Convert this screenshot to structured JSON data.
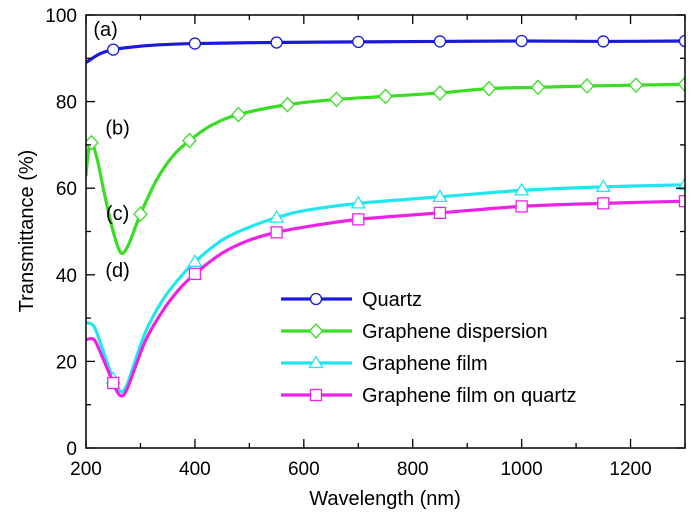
{
  "chart_data": {
    "type": "line",
    "xlabel": "Wavelength (nm)",
    "ylabel": "Transmittance (%)",
    "xlim": [
      200,
      1300
    ],
    "ylim": [
      0,
      100
    ],
    "xticks": [
      200,
      400,
      600,
      800,
      1000,
      1200
    ],
    "yticks": [
      0,
      20,
      40,
      60,
      80,
      100
    ],
    "grid": false,
    "legend_position": "lower-right",
    "series": [
      {
        "name": "Quartz",
        "curve_label": "(a)",
        "color": "#1a1adc",
        "marker": "circle",
        "points": [
          [
            200,
            89
          ],
          [
            225,
            91
          ],
          [
            250,
            92
          ],
          [
            300,
            92.8
          ],
          [
            350,
            93.2
          ],
          [
            400,
            93.4
          ],
          [
            500,
            93.6
          ],
          [
            600,
            93.7
          ],
          [
            700,
            93.8
          ],
          [
            850,
            93.9
          ],
          [
            1000,
            94
          ],
          [
            1150,
            93.9
          ],
          [
            1300,
            94
          ]
        ],
        "marker_x": [
          250,
          400,
          550,
          700,
          850,
          1000,
          1150,
          1300
        ]
      },
      {
        "name": "Graphene dispersion",
        "curve_label": "(b)",
        "color": "#38dd24",
        "marker": "diamond",
        "points": [
          [
            200,
            63
          ],
          [
            205,
            69
          ],
          [
            210,
            70.5
          ],
          [
            220,
            67
          ],
          [
            235,
            58
          ],
          [
            250,
            50
          ],
          [
            260,
            46
          ],
          [
            268,
            45
          ],
          [
            280,
            47.5
          ],
          [
            300,
            54
          ],
          [
            330,
            62
          ],
          [
            360,
            67.5
          ],
          [
            390,
            71
          ],
          [
            430,
            74.5
          ],
          [
            480,
            77
          ],
          [
            570,
            79.3
          ],
          [
            660,
            80.5
          ],
          [
            750,
            81.2
          ],
          [
            850,
            82
          ],
          [
            940,
            83
          ],
          [
            1030,
            83.3
          ],
          [
            1120,
            83.6
          ],
          [
            1210,
            83.8
          ],
          [
            1300,
            84
          ]
        ],
        "marker_x": [
          210,
          300,
          390,
          480,
          570,
          660,
          750,
          850,
          940,
          1030,
          1120,
          1210,
          1300
        ]
      },
      {
        "name": "Graphene film",
        "curve_label": "(c)",
        "color": "#22e6ee",
        "marker": "triangle",
        "points": [
          [
            200,
            29
          ],
          [
            215,
            28
          ],
          [
            230,
            23
          ],
          [
            245,
            17.5
          ],
          [
            255,
            14.5
          ],
          [
            265,
            13
          ],
          [
            275,
            14.5
          ],
          [
            290,
            20
          ],
          [
            310,
            27
          ],
          [
            340,
            34
          ],
          [
            370,
            39
          ],
          [
            400,
            43
          ],
          [
            450,
            48
          ],
          [
            500,
            51
          ],
          [
            550,
            53.2
          ],
          [
            600,
            54.8
          ],
          [
            700,
            56.5
          ],
          [
            850,
            58
          ],
          [
            1000,
            59.5
          ],
          [
            1150,
            60.3
          ],
          [
            1300,
            60.8
          ]
        ],
        "marker_x": [
          250,
          400,
          550,
          700,
          850,
          1000,
          1150,
          1300
        ]
      },
      {
        "name": "Graphene film on quartz",
        "curve_label": "(d)",
        "color": "#ee22e6",
        "marker": "square",
        "points": [
          [
            200,
            25
          ],
          [
            215,
            25
          ],
          [
            230,
            21
          ],
          [
            245,
            16.5
          ],
          [
            255,
            13.5
          ],
          [
            265,
            12
          ],
          [
            275,
            13.5
          ],
          [
            290,
            18.5
          ],
          [
            310,
            25
          ],
          [
            340,
            31.5
          ],
          [
            370,
            36.5
          ],
          [
            400,
            40.2
          ],
          [
            450,
            45
          ],
          [
            500,
            48
          ],
          [
            550,
            49.8
          ],
          [
            600,
            51
          ],
          [
            700,
            52.8
          ],
          [
            850,
            54.3
          ],
          [
            1000,
            55.8
          ],
          [
            1150,
            56.5
          ],
          [
            1300,
            57
          ]
        ],
        "marker_x": [
          250,
          400,
          550,
          700,
          850,
          1000,
          1150,
          1300
        ]
      }
    ]
  }
}
